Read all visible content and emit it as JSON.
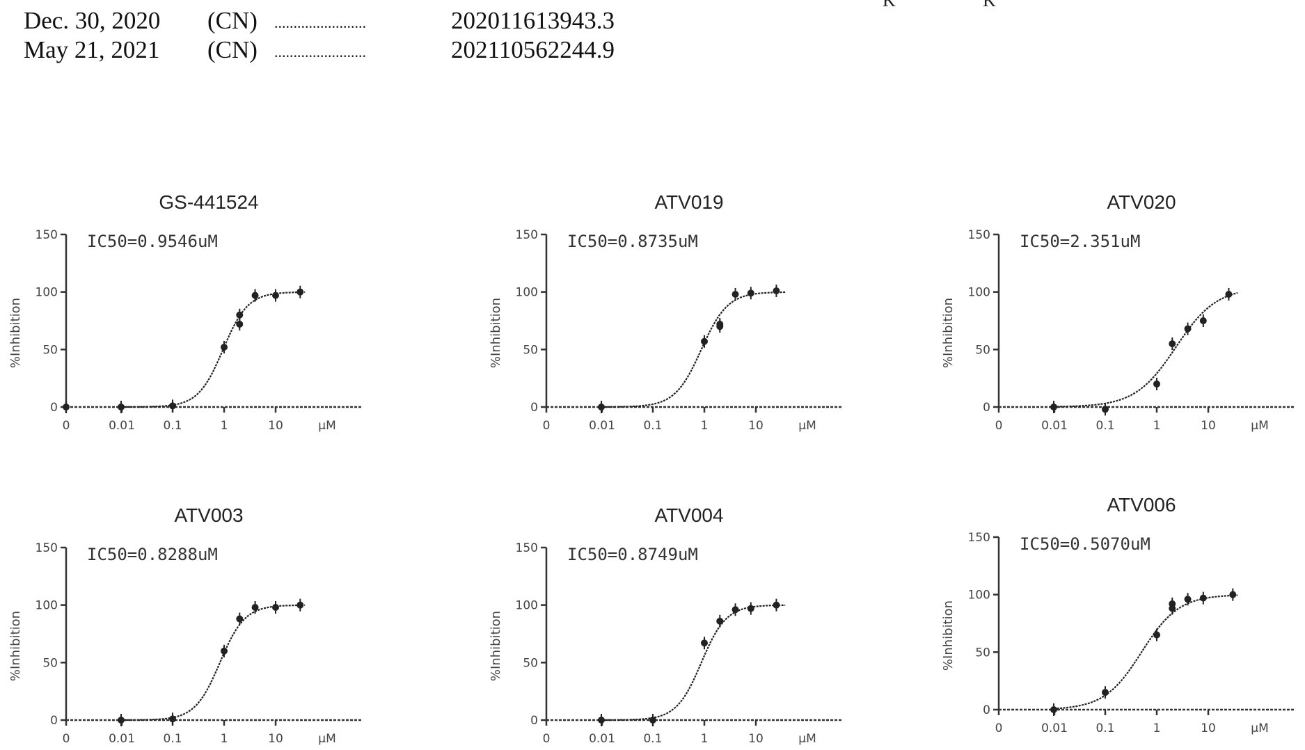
{
  "priority_claims": [
    {
      "date": "Dec. 30, 2020",
      "country": "(CN)",
      "dots": "........................",
      "number": "202011613943.3"
    },
    {
      "date": "May 21, 2021",
      "country": "(CN)",
      "dots": "........................",
      "number": "202110562244.9"
    }
  ],
  "top_fragment": [
    "K",
    "K"
  ],
  "chart_data": [
    {
      "type": "scatter",
      "title": "GS-441524",
      "annotation": "IC50=0.9546uM",
      "ylabel": "%Inhibition",
      "ylim": [
        0,
        150
      ],
      "yticks": [
        "0",
        "50",
        "100",
        "150"
      ],
      "xticks": [
        "0",
        "0.01",
        "0.1",
        "1",
        "10",
        "μM"
      ],
      "series": [
        {
          "x": [
            0,
            0.01,
            0.1,
            1,
            2,
            2,
            4,
            10,
            30
          ],
          "y": [
            0,
            0,
            1,
            52,
            72,
            80,
            97,
            97,
            100
          ]
        }
      ],
      "fit": {
        "ic50": 0.9546,
        "top": 100,
        "bottom": 0,
        "hill": 1.8
      }
    },
    {
      "type": "scatter",
      "title": "ATV019",
      "annotation": "IC50=0.8735uM",
      "ylabel": "%Inhibition",
      "ylim": [
        0,
        150
      ],
      "yticks": [
        "0",
        "50",
        "100",
        "150"
      ],
      "xticks": [
        "0",
        "0.01",
        "0.1",
        "1",
        "10",
        "μM"
      ],
      "series": [
        {
          "x": [
            0.01,
            1,
            2,
            2,
            4,
            8,
            25
          ],
          "y": [
            0,
            57,
            70,
            72,
            98,
            99,
            101
          ]
        }
      ],
      "fit": {
        "ic50": 0.8735,
        "top": 100,
        "bottom": 0,
        "hill": 1.7
      }
    },
    {
      "type": "scatter",
      "title": "ATV020",
      "annotation": "IC50=2.351uM",
      "ylabel": "%Inhibition",
      "ylim": [
        0,
        150
      ],
      "yticks": [
        "0",
        "50",
        "100",
        "150"
      ],
      "xticks": [
        "0",
        "0.01",
        "0.1",
        "1",
        "10",
        "μM"
      ],
      "series": [
        {
          "x": [
            0.01,
            0.1,
            1,
            2,
            4,
            8,
            25
          ],
          "y": [
            0,
            -2,
            20,
            55,
            68,
            75,
            98
          ]
        }
      ],
      "fit": {
        "ic50": 2.351,
        "top": 104,
        "bottom": 0,
        "hill": 1.1
      }
    },
    {
      "type": "scatter",
      "title": "ATV003",
      "annotation": "IC50=0.8288uM",
      "ylabel": "%Inhibition",
      "ylim": [
        0,
        150
      ],
      "yticks": [
        "0",
        "50",
        "100",
        "150"
      ],
      "xticks": [
        "0",
        "0.01",
        "0.1",
        "1",
        "10",
        "μM"
      ],
      "series": [
        {
          "x": [
            0.01,
            0.1,
            1,
            2,
            4,
            10,
            30
          ],
          "y": [
            0,
            1,
            60,
            88,
            98,
            98,
            100
          ]
        }
      ],
      "fit": {
        "ic50": 0.8288,
        "top": 100,
        "bottom": 0,
        "hill": 1.8
      }
    },
    {
      "type": "scatter",
      "title": "ATV004",
      "annotation": "IC50=0.8749uM",
      "ylabel": "%Inhibition",
      "ylim": [
        0,
        150
      ],
      "yticks": [
        "0",
        "50",
        "100",
        "150"
      ],
      "xticks": [
        "0",
        "0.01",
        "0.1",
        "1",
        "10",
        "μM"
      ],
      "series": [
        {
          "x": [
            0.01,
            0.1,
            1,
            2,
            4,
            8,
            25
          ],
          "y": [
            0,
            0,
            67,
            86,
            96,
            97,
            100
          ]
        }
      ],
      "fit": {
        "ic50": 0.8749,
        "top": 100,
        "bottom": 0,
        "hill": 1.8
      }
    },
    {
      "type": "scatter",
      "title": "ATV006",
      "annotation": "IC50=0.5070uM",
      "ylabel": "%Inhibition",
      "ylim": [
        0,
        150
      ],
      "yticks": [
        "0",
        "50",
        "100",
        "150"
      ],
      "xticks": [
        "0",
        "0.01",
        "0.1",
        "1",
        "10",
        "μM"
      ],
      "series": [
        {
          "x": [
            0.01,
            0.1,
            1,
            2,
            2,
            4,
            8,
            30
          ],
          "y": [
            0,
            15,
            65,
            88,
            92,
            96,
            97,
            100
          ]
        }
      ],
      "fit": {
        "ic50": 0.507,
        "top": 100,
        "bottom": 0,
        "hill": 1.2
      }
    }
  ]
}
